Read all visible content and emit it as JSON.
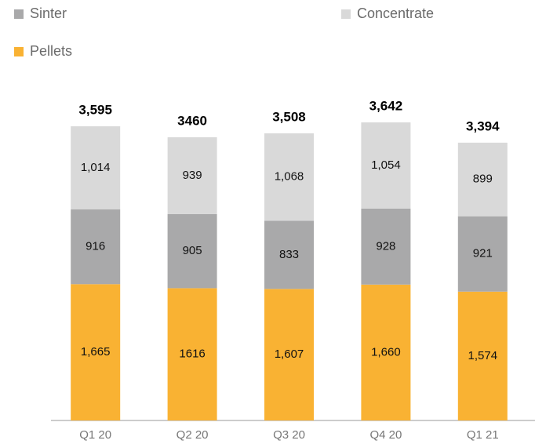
{
  "chart_data": {
    "type": "stacked-bar",
    "categories": [
      "Q1 20",
      "Q2 20",
      "Q3 20",
      "Q4 20",
      "Q1 21"
    ],
    "series": [
      {
        "name": "Pellets",
        "color": "#f9b233",
        "values": [
          1665,
          1616,
          1607,
          1660,
          1574
        ],
        "value_labels": [
          "1,665",
          "1616",
          "1,607",
          "1,660",
          "1,574"
        ]
      },
      {
        "name": "Sinter",
        "color": "#a9a9aa",
        "values": [
          916,
          905,
          833,
          928,
          921
        ]
      },
      {
        "name": "Concentrate",
        "color": "#d9d9d9",
        "values": [
          1014,
          939,
          1068,
          1054,
          899
        ],
        "value_labels": [
          "1,014",
          "939",
          "1,068",
          "1,054",
          "899"
        ]
      }
    ],
    "totals": [
      3595,
      3460,
      3508,
      3642,
      3394
    ],
    "total_labels": [
      "3,595",
      "3460",
      "3,508",
      "3,642",
      "3,394"
    ]
  }
}
